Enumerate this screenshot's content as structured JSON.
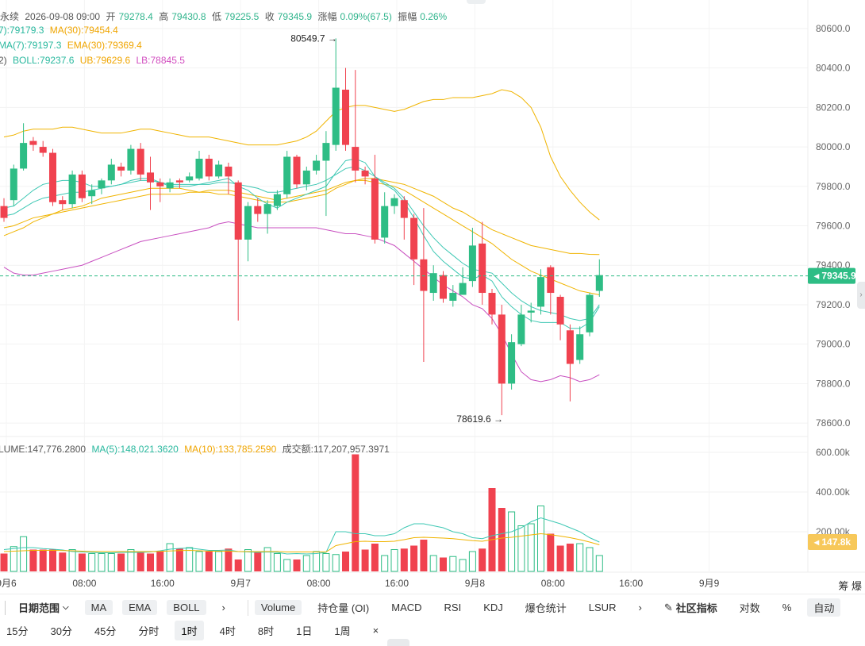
{
  "header": {
    "line1": {
      "prefix": "永续",
      "datetime": "2026-09-08 09:00",
      "open_label": "开",
      "open": "79278.4",
      "high_label": "高",
      "high": "79430.8",
      "low_label": "低",
      "low": "79225.5",
      "close_label": "收",
      "close": "79345.9",
      "change_label": "涨幅",
      "change": "0.09%(67.5)",
      "amp_label": "振幅",
      "amp": "0.26%"
    },
    "line2": {
      "ma7": "7):79179.3",
      "ma30": "MA(30):79454.4"
    },
    "line3": {
      "ema7": "MA(7):79197.3",
      "ema30": "EMA(30):79369.4"
    },
    "line4": {
      "boll_params": "2)",
      "boll": "BOLL:79237.6",
      "ub": "UB:79629.6",
      "lb": "LB:78845.5"
    },
    "volume": {
      "vol": "LUME:147,776.2800",
      "ma5": "MA(5):148,021.3620",
      "ma10": "MA(10):133,785.2590",
      "turnover": "成交额:117,207,957.3971"
    }
  },
  "colors": {
    "up": "#2ebd85",
    "down": "#f0424f",
    "ma_teal": "#3ec8b4",
    "ma_orange": "#f0b400",
    "boll_pink": "#c84fc0",
    "axis_text": "#666666",
    "price_tag": "#2ebd85",
    "vol_tag": "#f7c85a"
  },
  "chart_data": {
    "type": "candlestick",
    "interval": "1h",
    "y_ticks": [
      "80600.0",
      "80400.0",
      "80200.0",
      "80000.0",
      "79800.0",
      "79600.0",
      "79400.0",
      "79200.0",
      "79000.0",
      "78800.0",
      "78600.0"
    ],
    "ylim": [
      78540,
      80640
    ],
    "x_ticks": [
      {
        "i": 0,
        "label": "9月6"
      },
      {
        "i": 8,
        "label": "08:00"
      },
      {
        "i": 16,
        "label": "16:00"
      },
      {
        "i": 24,
        "label": "9月7"
      },
      {
        "i": 32,
        "label": "08:00"
      },
      {
        "i": 40,
        "label": "16:00"
      },
      {
        "i": 48,
        "label": "9月8"
      },
      {
        "i": 56,
        "label": "08:00"
      },
      {
        "i": 64,
        "label": "16:00"
      },
      {
        "i": 72,
        "label": "9月9"
      }
    ],
    "candles": [
      [
        79700,
        79640,
        79740,
        79620
      ],
      [
        79730,
        79890,
        79910,
        79700
      ],
      [
        79890,
        80020,
        80120,
        79880
      ],
      [
        80030,
        80010,
        80050,
        79980
      ],
      [
        80000,
        79970,
        80030,
        79950
      ],
      [
        79970,
        79720,
        79990,
        79700
      ],
      [
        79730,
        79710,
        79750,
        79680
      ],
      [
        79710,
        79860,
        79880,
        79690
      ],
      [
        79860,
        79740,
        79880,
        79720
      ],
      [
        79750,
        79780,
        79810,
        79710
      ],
      [
        79790,
        79830,
        79840,
        79760
      ],
      [
        79830,
        79910,
        79940,
        79810
      ],
      [
        79900,
        79880,
        79920,
        79850
      ],
      [
        79880,
        79990,
        80010,
        79860
      ],
      [
        79990,
        79860,
        80020,
        79830
      ],
      [
        79870,
        79820,
        79950,
        79680
      ],
      [
        79820,
        79800,
        79840,
        79720
      ],
      [
        79790,
        79820,
        79840,
        79770
      ],
      [
        79830,
        79820,
        79840,
        79790
      ],
      [
        79830,
        79850,
        79870,
        79820
      ],
      [
        79840,
        79940,
        79980,
        79830
      ],
      [
        79940,
        79850,
        79960,
        79830
      ],
      [
        79850,
        79910,
        79930,
        79840
      ],
      [
        79900,
        79850,
        79920,
        79760
      ],
      [
        79820,
        79530,
        79830,
        79120
      ],
      [
        79530,
        79700,
        79720,
        79420
      ],
      [
        79700,
        79660,
        79740,
        79620
      ],
      [
        79660,
        79710,
        79730,
        79560
      ],
      [
        79700,
        79760,
        79780,
        79680
      ],
      [
        79760,
        79950,
        79980,
        79740
      ],
      [
        79950,
        79810,
        79960,
        79790
      ],
      [
        79810,
        79880,
        79900,
        79780
      ],
      [
        79880,
        79930,
        79960,
        79860
      ],
      [
        79930,
        80020,
        80080,
        79650
      ],
      [
        80010,
        80300,
        80550,
        79980
      ],
      [
        80290,
        80010,
        80400,
        79980
      ],
      [
        80000,
        79880,
        80390,
        79820
      ],
      [
        79880,
        79850,
        79900,
        79810
      ],
      [
        79840,
        79530,
        79960,
        79510
      ],
      [
        79540,
        79700,
        79770,
        79510
      ],
      [
        79700,
        79740,
        79760,
        79660
      ],
      [
        79730,
        79640,
        79750,
        79530
      ],
      [
        79640,
        79430,
        79660,
        79300
      ],
      [
        79430,
        79270,
        79690,
        78910
      ],
      [
        79260,
        79360,
        79400,
        79220
      ],
      [
        79350,
        79230,
        79370,
        79210
      ],
      [
        79220,
        79260,
        79300,
        79190
      ],
      [
        79250,
        79310,
        79390,
        79260
      ],
      [
        79320,
        79500,
        79590,
        79290
      ],
      [
        79510,
        79260,
        79620,
        79200
      ],
      [
        79260,
        79150,
        79280,
        79100
      ],
      [
        79150,
        78800,
        79200,
        78640
      ],
      [
        78800,
        79010,
        79050,
        78770
      ],
      [
        79000,
        79150,
        79200,
        78990
      ],
      [
        79160,
        79170,
        79210,
        79110
      ],
      [
        79190,
        79340,
        79380,
        79150
      ],
      [
        79390,
        79260,
        79400,
        79150
      ],
      [
        79240,
        79100,
        79250,
        79020
      ],
      [
        79070,
        78900,
        79100,
        78710
      ],
      [
        78920,
        79050,
        79090,
        78900
      ],
      [
        79060,
        79250,
        79260,
        79040
      ],
      [
        79270,
        79350,
        79430,
        79240
      ]
    ],
    "overlays": {
      "ma_fast": [
        79690,
        79700,
        79740,
        79780,
        79810,
        79820,
        79830,
        79830,
        79820,
        79800,
        79800,
        79800,
        79810,
        79830,
        79840,
        79840,
        79820,
        79800,
        79800,
        79800,
        79810,
        79820,
        79830,
        79840,
        79800,
        79780,
        79740,
        79710,
        79690,
        79720,
        79740,
        79760,
        79780,
        79800,
        79870,
        79930,
        79940,
        79920,
        79850,
        79810,
        79780,
        79720,
        79640,
        79550,
        79470,
        79420,
        79380,
        79340,
        79330,
        79350,
        79320,
        79240,
        79190,
        79150,
        79120,
        79110,
        79110,
        79110,
        79080,
        79080,
        79110,
        79190
      ],
      "ma_mid": [
        79650,
        79660,
        79690,
        79720,
        79740,
        79750,
        79760,
        79770,
        79770,
        79780,
        79790,
        79800,
        79810,
        79820,
        79830,
        79830,
        79820,
        79810,
        79810,
        79810,
        79810,
        79810,
        79820,
        79820,
        79810,
        79800,
        79790,
        79770,
        79770,
        79780,
        79790,
        79800,
        79810,
        79830,
        79860,
        79890,
        79900,
        79880,
        79850,
        79820,
        79790,
        79740,
        79670,
        79600,
        79540,
        79490,
        79450,
        79410,
        79380,
        79370,
        79360,
        79310,
        79260,
        79220,
        79190,
        79170,
        79160,
        79150,
        79130,
        79120,
        79130,
        79200
      ],
      "ema_slow": [
        79590,
        79600,
        79620,
        79640,
        79650,
        79660,
        79670,
        79680,
        79690,
        79700,
        79710,
        79720,
        79730,
        79740,
        79750,
        79760,
        79760,
        79760,
        79760,
        79770,
        79770,
        79780,
        79780,
        79780,
        79770,
        79760,
        79750,
        79740,
        79730,
        79740,
        79750,
        79760,
        79770,
        79780,
        79800,
        79820,
        79830,
        79830,
        79820,
        79810,
        79800,
        79780,
        79750,
        79720,
        79690,
        79660,
        79630,
        79600,
        79570,
        79540,
        79510,
        79470,
        79430,
        79400,
        79370,
        79350,
        79330,
        79310,
        79290,
        79270,
        79260,
        79250
      ],
      "ma30": [
        79550,
        79570,
        79590,
        79620,
        79640,
        79660,
        79680,
        79690,
        79700,
        79720,
        79740,
        79750,
        79760,
        79770,
        79780,
        79790,
        79790,
        79790,
        79790,
        79780,
        79770,
        79770,
        79760,
        79760,
        79750,
        79740,
        79730,
        79720,
        79720,
        79720,
        79730,
        79740,
        79750,
        79760,
        79790,
        79810,
        79830,
        79840,
        79840,
        79830,
        79820,
        79810,
        79790,
        79770,
        79750,
        79720,
        79690,
        79670,
        79640,
        79610,
        79580,
        79560,
        79540,
        79520,
        79500,
        79490,
        79480,
        79470,
        79460,
        79460,
        79455,
        79454
      ],
      "boll_upper": [
        80050,
        80060,
        80080,
        80090,
        80090,
        80090,
        80100,
        80100,
        80090,
        80080,
        80070,
        80070,
        80070,
        80080,
        80090,
        80090,
        80080,
        80070,
        80060,
        80050,
        80050,
        80050,
        80040,
        80030,
        80020,
        80010,
        80010,
        80010,
        80010,
        80020,
        80030,
        80050,
        80080,
        80130,
        80180,
        80200,
        80210,
        80210,
        80200,
        80190,
        80180,
        80190,
        80210,
        80230,
        80240,
        80240,
        80250,
        80250,
        80250,
        80260,
        80270,
        80290,
        80280,
        80250,
        80200,
        80100,
        79950,
        79850,
        79780,
        79720,
        79670,
        79630
      ],
      "boll_lower": [
        79390,
        79360,
        79350,
        79350,
        79360,
        79370,
        79380,
        79390,
        79400,
        79420,
        79440,
        79460,
        79480,
        79500,
        79520,
        79530,
        79540,
        79550,
        79560,
        79570,
        79580,
        79590,
        79610,
        79620,
        79610,
        79600,
        79590,
        79590,
        79590,
        79590,
        79590,
        79590,
        79590,
        79580,
        79570,
        79560,
        79560,
        79550,
        79540,
        79520,
        79500,
        79460,
        79420,
        79380,
        79340,
        79300,
        79270,
        79240,
        79200,
        79180,
        79130,
        79050,
        78950,
        78860,
        78820,
        78810,
        78820,
        78840,
        78830,
        78810,
        78820,
        78845
      ]
    },
    "markers": {
      "high": {
        "i": 34,
        "value": "80549.7"
      },
      "low": {
        "i": 51,
        "value": "78619.6"
      }
    },
    "current_price": "79345.9",
    "volume": {
      "y_ticks": [
        "600.00k",
        "400.00k",
        "200.00k"
      ],
      "ylim": [
        0,
        620000
      ],
      "current_tag": "147.8k",
      "values": [
        90000,
        125000,
        175000,
        110000,
        110000,
        110000,
        95000,
        110000,
        90000,
        90000,
        90000,
        90000,
        90000,
        110000,
        95000,
        90000,
        100000,
        140000,
        115000,
        120000,
        100000,
        100000,
        100000,
        115000,
        60000,
        110000,
        100000,
        120000,
        90000,
        60000,
        60000,
        80000,
        100000,
        90000,
        85000,
        100000,
        590000,
        110000,
        140000,
        80000,
        110000,
        115000,
        130000,
        160000,
        80000,
        70000,
        75000,
        60000,
        100000,
        115000,
        420000,
        320000,
        300000,
        230000,
        240000,
        330000,
        190000,
        130000,
        140000,
        140000,
        120000,
        80000
      ],
      "ma_fast": [
        110000,
        115000,
        120000,
        120000,
        115000,
        112000,
        108000,
        100000,
        98000,
        96000,
        94000,
        94000,
        96000,
        96000,
        96000,
        98000,
        104000,
        112000,
        116000,
        118000,
        112000,
        106000,
        106000,
        108000,
        100000,
        98000,
        96000,
        98000,
        96000,
        88000,
        90000,
        88000,
        90000,
        96000,
        200000,
        200000,
        190000,
        190000,
        180000,
        180000,
        190000,
        220000,
        240000,
        240000,
        230000,
        220000,
        200000,
        190000,
        170000,
        165000,
        180000,
        190000,
        200000,
        220000,
        250000,
        270000,
        255000,
        240000,
        220000,
        200000,
        170000,
        148000
      ],
      "ma_slow": [
        100000,
        102000,
        104000,
        106000,
        106000,
        106000,
        105000,
        104000,
        102000,
        100000,
        100000,
        100000,
        100000,
        100000,
        100000,
        100000,
        101000,
        103000,
        105000,
        106000,
        104000,
        102000,
        102000,
        102000,
        100000,
        100000,
        100000,
        100000,
        100000,
        98000,
        98000,
        98000,
        98000,
        98000,
        130000,
        140000,
        150000,
        152000,
        150000,
        150000,
        152000,
        160000,
        170000,
        172000,
        170000,
        168000,
        165000,
        160000,
        155000,
        152000,
        160000,
        168000,
        172000,
        178000,
        184000,
        190000,
        185000,
        178000,
        170000,
        160000,
        148000,
        134000
      ]
    }
  },
  "toolbar": {
    "date_range": "日期范围",
    "ma": "MA",
    "ema": "EMA",
    "boll": "BOLL",
    "more1": "›",
    "volume": "Volume",
    "oi": "持仓量 (OI)",
    "macd": "MACD",
    "rsi": "RSI",
    "kdj": "KDJ",
    "liquidation": "爆仓统计",
    "lsur": "LSUR",
    "more2": "›",
    "community": "社区指标",
    "log": "对数",
    "percent": "%",
    "auto": "自动"
  },
  "timeframes": [
    "15分",
    "30分",
    "45分",
    "分时",
    "1时",
    "4时",
    "8时",
    "1日",
    "1周"
  ],
  "timeframe_active": "1时",
  "close_x": "×",
  "corner": "筹 爆"
}
